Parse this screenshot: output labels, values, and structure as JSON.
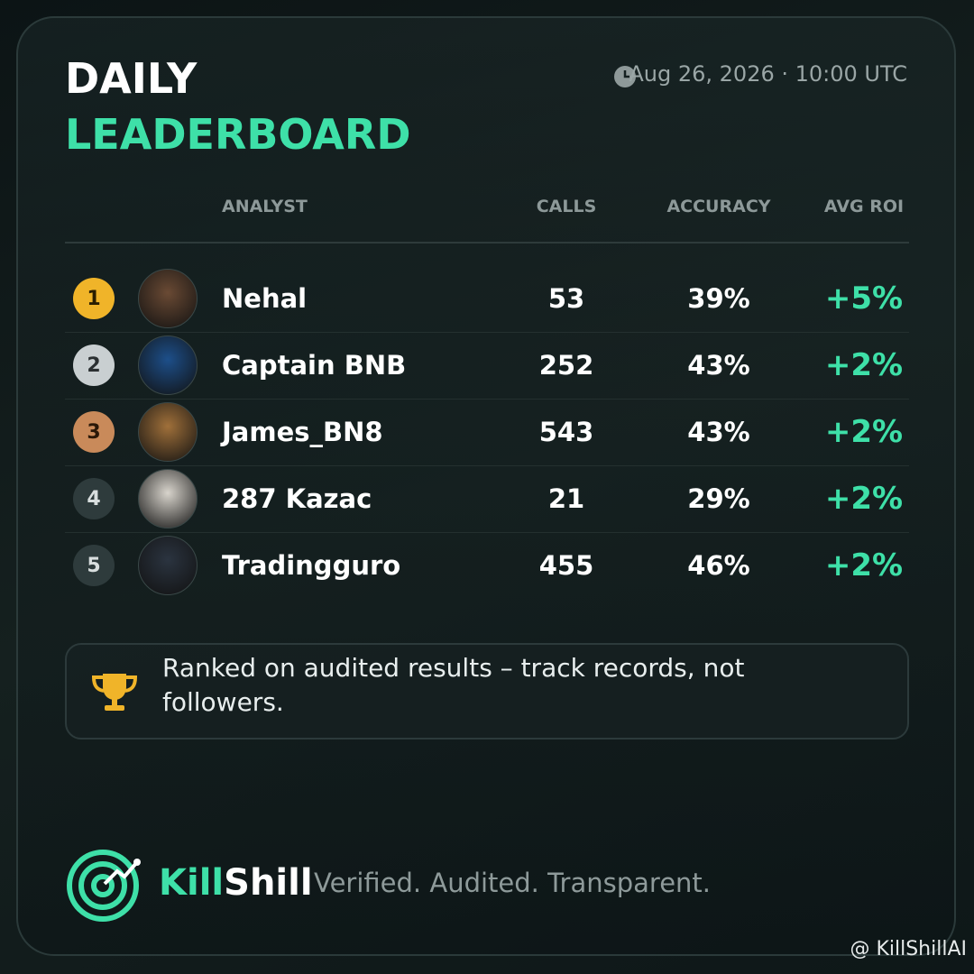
{
  "header": {
    "title_line1": "DAILY",
    "title_line2": "LEADERBOARD",
    "timestamp": "Aug 26, 2026 · 10:00 UTC"
  },
  "table": {
    "columns": [
      "ANALYST",
      "CALLS",
      "ACCURACY",
      "AVG ROI"
    ],
    "rows": [
      {
        "rank": "1",
        "name": "Nehal",
        "calls": "53",
        "accuracy": "39%",
        "roi": "+5%"
      },
      {
        "rank": "2",
        "name": "Captain BNB",
        "calls": "252",
        "accuracy": "43%",
        "roi": "+2%"
      },
      {
        "rank": "3",
        "name": "James_BN8",
        "calls": "543",
        "accuracy": "43%",
        "roi": "+2%"
      },
      {
        "rank": "4",
        "name": "287 Kazac",
        "calls": "21",
        "accuracy": "29%",
        "roi": "+2%"
      },
      {
        "rank": "5",
        "name": "Tradingguro",
        "calls": "455",
        "accuracy": "46%",
        "roi": "+2%"
      }
    ]
  },
  "note": "Ranked on audited results – track records, not followers.",
  "footer": {
    "brand_part1": "Kill",
    "brand_part2": "Shill",
    "tagline": "Verified. Audited. Transparent.",
    "watermark": "@ KillShillAI"
  }
}
